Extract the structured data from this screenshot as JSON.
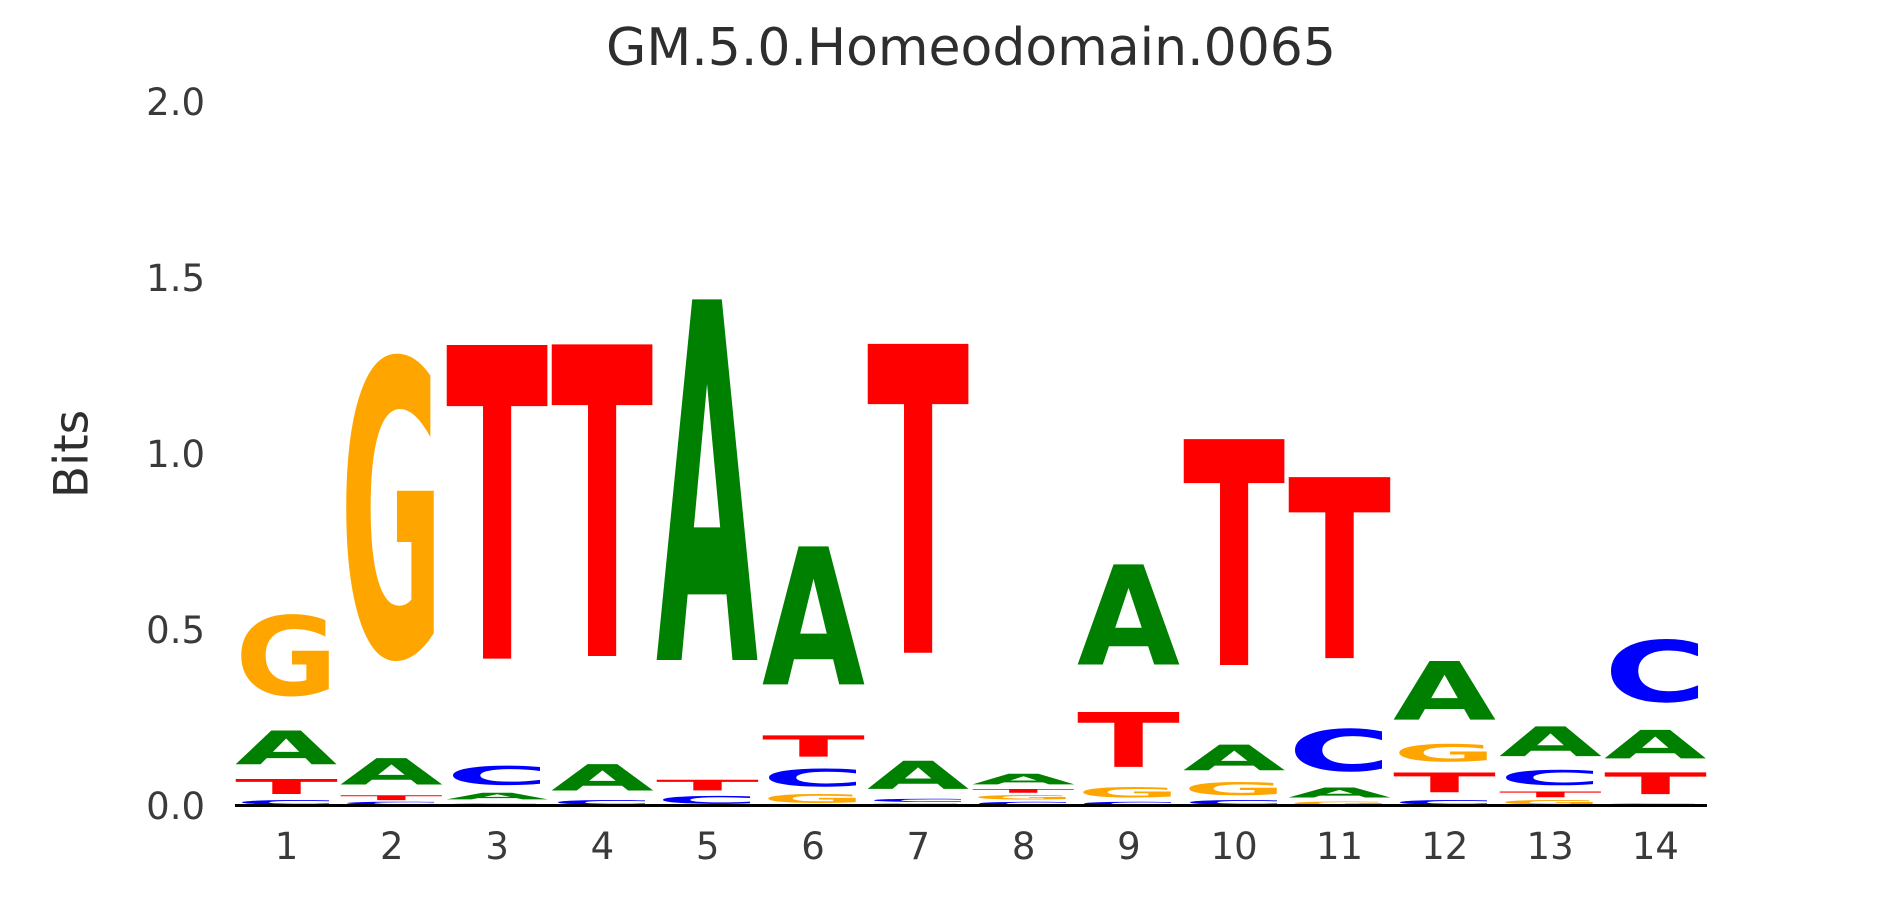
{
  "title": "GM.5.0.Homeodomain.0065",
  "chart_data": {
    "type": "sequence_logo",
    "title": "GM.5.0.Homeodomain.0065",
    "xlabel": "",
    "ylabel": "Bits",
    "ylim": [
      0.0,
      2.0
    ],
    "grid": false,
    "legend": "none",
    "colors": {
      "A": "#008000",
      "C": "#0000FF",
      "G": "#FFA500",
      "T": "#FF0000"
    },
    "yticks": [
      {
        "label": "0.0",
        "value": 0.0
      },
      {
        "label": "0.5",
        "value": 0.5
      },
      {
        "label": "1.0",
        "value": 1.0
      },
      {
        "label": "1.5",
        "value": 1.5
      },
      {
        "label": "2.0",
        "value": 2.0
      }
    ],
    "stack_order": "bottom_to_top",
    "positions": [
      {
        "label": "1",
        "stack": [
          {
            "base": "C",
            "bits": 0.02
          },
          {
            "base": "T",
            "bits": 0.068
          },
          {
            "base": "A",
            "bits": 0.152
          },
          {
            "base": "G",
            "bits": 0.36
          }
        ]
      },
      {
        "label": "2",
        "stack": [
          {
            "base": "C",
            "bits": 0.013
          },
          {
            "base": "T",
            "bits": 0.022
          },
          {
            "base": "A",
            "bits": 0.12
          },
          {
            "base": "G",
            "bits": 1.345
          }
        ]
      },
      {
        "label": "3",
        "stack": [
          {
            "base": "G",
            "bits": 0.012
          },
          {
            "base": "A",
            "bits": 0.03
          },
          {
            "base": "C",
            "bits": 0.085
          },
          {
            "base": "T",
            "bits": 1.423
          }
        ]
      },
      {
        "label": "4",
        "stack": [
          {
            "base": "C",
            "bits": 0.02
          },
          {
            "base": "A",
            "bits": 0.12
          },
          {
            "base": "T",
            "bits": 1.415
          }
        ]
      },
      {
        "label": "5",
        "stack": [
          {
            "base": "C",
            "bits": 0.035
          },
          {
            "base": "T",
            "bits": 0.048
          },
          {
            "base": "A",
            "bits": 1.637
          }
        ]
      },
      {
        "label": "6",
        "stack": [
          {
            "base": "G",
            "bits": 0.04
          },
          {
            "base": "C",
            "bits": 0.08
          },
          {
            "base": "T",
            "bits": 0.096
          },
          {
            "base": "A",
            "bits": 0.624
          }
        ]
      },
      {
        "label": "7",
        "stack": [
          {
            "base": "G",
            "bits": 0.008
          },
          {
            "base": "C",
            "bits": 0.014
          },
          {
            "base": "A",
            "bits": 0.128
          },
          {
            "base": "T",
            "bits": 1.4
          }
        ]
      },
      {
        "label": "8",
        "stack": [
          {
            "base": "C",
            "bits": 0.015
          },
          {
            "base": "G",
            "bits": 0.02
          },
          {
            "base": "T",
            "bits": 0.017
          },
          {
            "base": "A",
            "bits": 0.048
          }
        ]
      },
      {
        "label": "9",
        "stack": [
          {
            "base": "C",
            "bits": 0.015
          },
          {
            "base": "G",
            "bits": 0.045
          },
          {
            "base": "T",
            "bits": 0.25
          },
          {
            "base": "A",
            "bits": 0.455
          }
        ]
      },
      {
        "label": "10",
        "stack": [
          {
            "base": "C",
            "bits": 0.02
          },
          {
            "base": "G",
            "bits": 0.057
          },
          {
            "base": "A",
            "bits": 0.116
          },
          {
            "base": "T",
            "bits": 1.027
          }
        ]
      },
      {
        "label": "11",
        "stack": [
          {
            "base": "G",
            "bits": 0.015
          },
          {
            "base": "A",
            "bits": 0.045
          },
          {
            "base": "C",
            "bits": 0.19
          },
          {
            "base": "T",
            "bits": 0.82
          }
        ]
      },
      {
        "label": "12",
        "stack": [
          {
            "base": "C",
            "bits": 0.02
          },
          {
            "base": "T",
            "bits": 0.09
          },
          {
            "base": "G",
            "bits": 0.08
          },
          {
            "base": "A",
            "bits": 0.265
          }
        ]
      },
      {
        "label": "13",
        "stack": [
          {
            "base": "G",
            "bits": 0.02
          },
          {
            "base": "T",
            "bits": 0.026
          },
          {
            "base": "C",
            "bits": 0.068
          },
          {
            "base": "A",
            "bits": 0.136
          }
        ]
      },
      {
        "label": "14",
        "stack": [
          {
            "base": "G",
            "bits": 0.012
          },
          {
            "base": "T",
            "bits": 0.098
          },
          {
            "base": "A",
            "bits": 0.13
          },
          {
            "base": "C",
            "bits": 0.28
          }
        ]
      }
    ]
  }
}
